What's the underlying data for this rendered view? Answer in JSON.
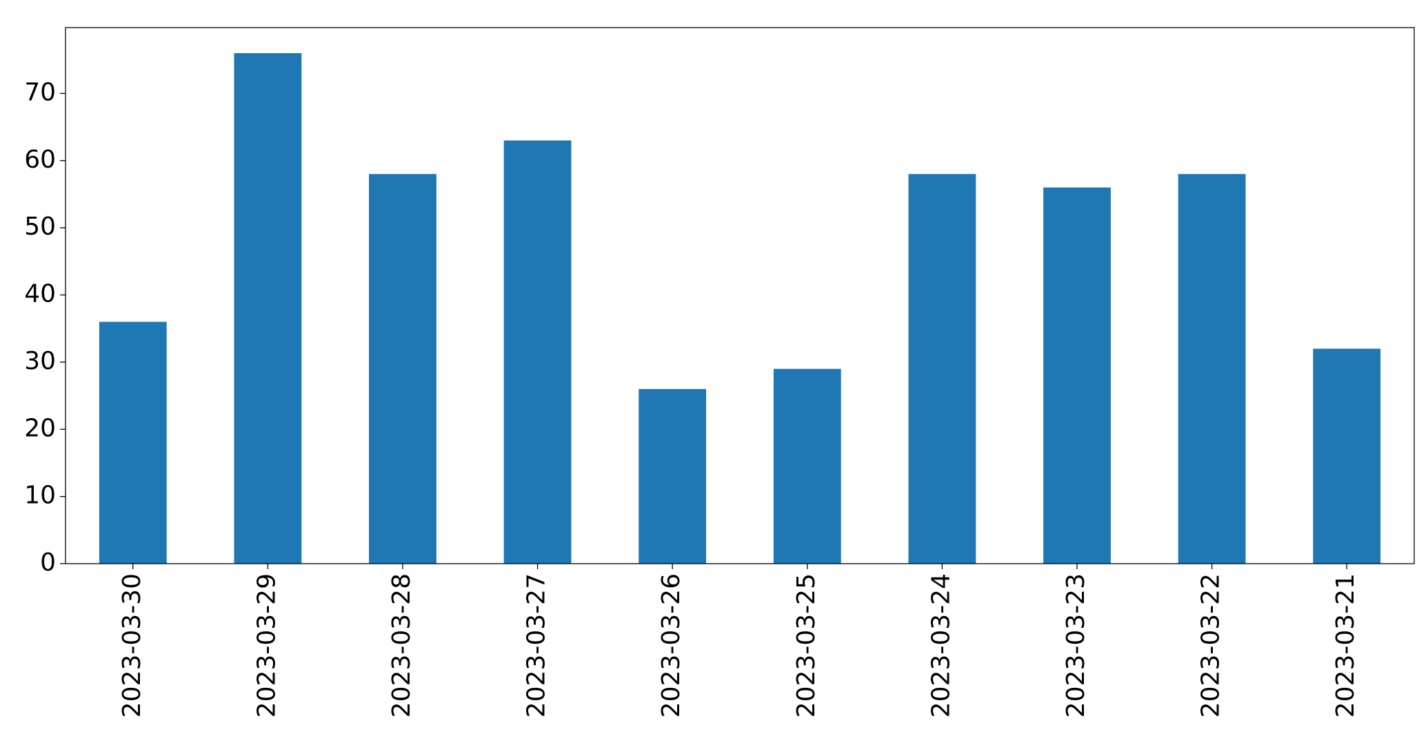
{
  "chart_data": {
    "type": "bar",
    "categories": [
      "2023-03-30",
      "2023-03-29",
      "2023-03-28",
      "2023-03-27",
      "2023-03-26",
      "2023-03-25",
      "2023-03-24",
      "2023-03-23",
      "2023-03-22",
      "2023-03-21"
    ],
    "values": [
      36,
      76,
      58,
      63,
      26,
      29,
      58,
      56,
      58,
      32
    ],
    "color": "#1f77b4",
    "ylim": [
      0,
      79.8
    ],
    "yticks": [
      0,
      10,
      20,
      30,
      40,
      50,
      60,
      70
    ],
    "grid": false
  }
}
